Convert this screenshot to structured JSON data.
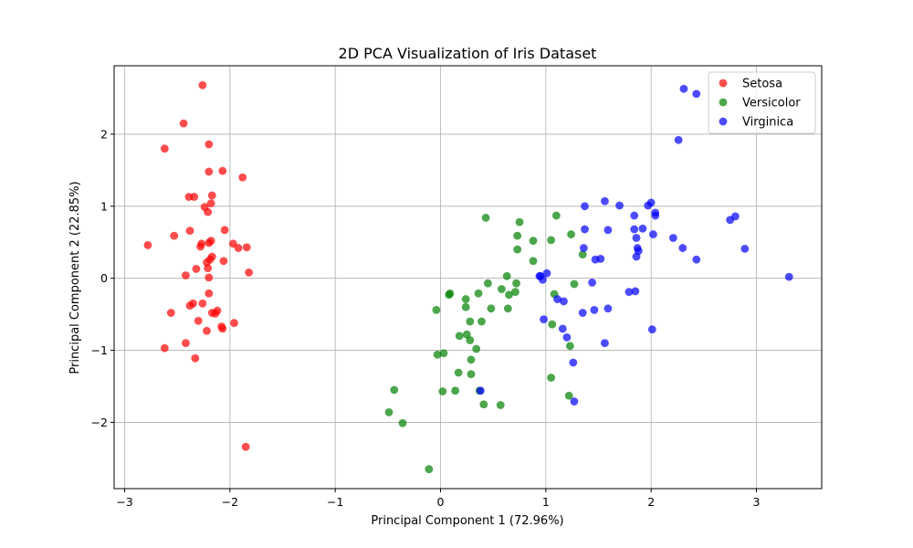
{
  "chart_data": {
    "type": "scatter",
    "title": "2D PCA Visualization of Iris Dataset",
    "xlabel": "Principal Component 1 (72.96%)",
    "ylabel": "Principal Component 2 (22.85%)",
    "xlim": [
      -3.1,
      3.62
    ],
    "ylim": [
      -2.92,
      2.95
    ],
    "xticks": [
      -3,
      -2,
      -1,
      0,
      1,
      2,
      3
    ],
    "yticks": [
      -2,
      -1,
      0,
      1,
      2
    ],
    "xtick_labels": [
      "−3",
      "−2",
      "−1",
      "0",
      "1",
      "2",
      "3"
    ],
    "ytick_labels": [
      "−2",
      "−1",
      "0",
      "1",
      "2"
    ],
    "grid": true,
    "legend_position": "top-right",
    "point_alpha": 0.7,
    "series": [
      {
        "name": "Setosa",
        "color": "#ff0000",
        "points": [
          [
            -2.26,
            2.68
          ],
          [
            -2.44,
            2.15
          ],
          [
            -2.62,
            1.8
          ],
          [
            -2.2,
            1.86
          ],
          [
            -2.2,
            1.48
          ],
          [
            -2.07,
            1.49
          ],
          [
            -1.88,
            1.4
          ],
          [
            -2.39,
            1.13
          ],
          [
            -2.34,
            1.13
          ],
          [
            -2.17,
            1.15
          ],
          [
            -2.18,
            1.04
          ],
          [
            -2.24,
            0.99
          ],
          [
            -2.21,
            0.92
          ],
          [
            -2.38,
            0.66
          ],
          [
            -2.05,
            0.67
          ],
          [
            -2.53,
            0.59
          ],
          [
            -2.78,
            0.46
          ],
          [
            -2.18,
            0.52
          ],
          [
            -2.2,
            0.49
          ],
          [
            -2.27,
            0.48
          ],
          [
            -2.28,
            0.44
          ],
          [
            -1.97,
            0.48
          ],
          [
            -1.92,
            0.42
          ],
          [
            -1.84,
            0.43
          ],
          [
            -2.17,
            0.3
          ],
          [
            -2.19,
            0.26
          ],
          [
            -2.22,
            0.22
          ],
          [
            -2.06,
            0.24
          ],
          [
            -2.32,
            0.13
          ],
          [
            -2.21,
            0.14
          ],
          [
            -1.82,
            0.08
          ],
          [
            -2.42,
            0.04
          ],
          [
            -2.2,
            0.01
          ],
          [
            -2.2,
            -0.21
          ],
          [
            -2.35,
            -0.35
          ],
          [
            -2.26,
            -0.35
          ],
          [
            -2.38,
            -0.38
          ],
          [
            -2.12,
            -0.45
          ],
          [
            -2.17,
            -0.48
          ],
          [
            -2.14,
            -0.49
          ],
          [
            -2.56,
            -0.48
          ],
          [
            -1.96,
            -0.62
          ],
          [
            -2.3,
            -0.59
          ],
          [
            -2.08,
            -0.67
          ],
          [
            -2.07,
            -0.7
          ],
          [
            -2.22,
            -0.73
          ],
          [
            -2.42,
            -0.9
          ],
          [
            -2.62,
            -0.97
          ],
          [
            -2.33,
            -1.11
          ],
          [
            -1.85,
            -2.34
          ]
        ]
      },
      {
        "name": "Versicolor",
        "color": "#008000",
        "points": [
          [
            0.43,
            0.84
          ],
          [
            0.75,
            0.78
          ],
          [
            1.1,
            0.87
          ],
          [
            0.73,
            0.59
          ],
          [
            0.88,
            0.52
          ],
          [
            1.05,
            0.53
          ],
          [
            1.24,
            0.61
          ],
          [
            0.73,
            0.4
          ],
          [
            1.35,
            0.33
          ],
          [
            0.88,
            0.24
          ],
          [
            0.63,
            0.03
          ],
          [
            0.45,
            -0.07
          ],
          [
            0.72,
            -0.07
          ],
          [
            1.27,
            -0.08
          ],
          [
            0.58,
            -0.15
          ],
          [
            0.71,
            -0.19
          ],
          [
            0.65,
            -0.23
          ],
          [
            0.09,
            -0.21
          ],
          [
            0.08,
            -0.23
          ],
          [
            1.08,
            -0.22
          ],
          [
            0.36,
            -0.21
          ],
          [
            0.24,
            -0.29
          ],
          [
            0.24,
            -0.4
          ],
          [
            0.48,
            -0.42
          ],
          [
            0.64,
            -0.42
          ],
          [
            -0.04,
            -0.44
          ],
          [
            0.28,
            -0.6
          ],
          [
            0.39,
            -0.6
          ],
          [
            1.06,
            -0.64
          ],
          [
            0.18,
            -0.8
          ],
          [
            0.25,
            -0.78
          ],
          [
            0.28,
            -0.86
          ],
          [
            1.23,
            -0.94
          ],
          [
            0.34,
            -0.98
          ],
          [
            0.03,
            -1.04
          ],
          [
            -0.03,
            -1.06
          ],
          [
            0.29,
            -1.13
          ],
          [
            0.17,
            -1.31
          ],
          [
            0.29,
            -1.33
          ],
          [
            1.05,
            -1.38
          ],
          [
            -0.44,
            -1.55
          ],
          [
            0.14,
            -1.56
          ],
          [
            0.02,
            -1.57
          ],
          [
            1.22,
            -1.63
          ],
          [
            0.57,
            -1.76
          ],
          [
            0.41,
            -1.75
          ],
          [
            -0.49,
            -1.86
          ],
          [
            -0.36,
            -2.01
          ],
          [
            -0.11,
            -2.65
          ],
          [
            0.37,
            -1.56
          ]
        ]
      },
      {
        "name": "Virginica",
        "color": "#0000ff",
        "points": [
          [
            2.31,
            2.63
          ],
          [
            2.43,
            2.56
          ],
          [
            2.26,
            1.92
          ],
          [
            1.97,
            1.01
          ],
          [
            1.56,
            1.07
          ],
          [
            1.7,
            1.01
          ],
          [
            1.37,
            1.0
          ],
          [
            2.0,
            1.05
          ],
          [
            2.04,
            0.91
          ],
          [
            2.04,
            0.87
          ],
          [
            1.84,
            0.87
          ],
          [
            2.8,
            0.86
          ],
          [
            2.75,
            0.81
          ],
          [
            1.37,
            0.68
          ],
          [
            1.84,
            0.68
          ],
          [
            1.92,
            0.69
          ],
          [
            1.59,
            0.67
          ],
          [
            2.02,
            0.61
          ],
          [
            2.21,
            0.56
          ],
          [
            1.86,
            0.56
          ],
          [
            1.36,
            0.42
          ],
          [
            1.87,
            0.42
          ],
          [
            2.3,
            0.42
          ],
          [
            2.89,
            0.41
          ],
          [
            1.88,
            0.38
          ],
          [
            1.86,
            0.3
          ],
          [
            1.47,
            0.26
          ],
          [
            1.52,
            0.27
          ],
          [
            2.43,
            0.26
          ],
          [
            1.01,
            0.07
          ],
          [
            0.94,
            0.03
          ],
          [
            0.95,
            0.03
          ],
          [
            0.97,
            -0.02
          ],
          [
            3.31,
            0.02
          ],
          [
            1.44,
            -0.06
          ],
          [
            1.79,
            -0.19
          ],
          [
            1.85,
            -0.18
          ],
          [
            1.11,
            -0.29
          ],
          [
            1.17,
            -0.32
          ],
          [
            1.35,
            -0.48
          ],
          [
            1.46,
            -0.44
          ],
          [
            1.59,
            -0.42
          ],
          [
            0.98,
            -0.57
          ],
          [
            1.16,
            -0.7
          ],
          [
            2.01,
            -0.71
          ],
          [
            1.2,
            -0.82
          ],
          [
            1.56,
            -0.9
          ],
          [
            1.26,
            -1.17
          ],
          [
            0.38,
            -1.56
          ],
          [
            1.27,
            -1.71
          ]
        ]
      }
    ]
  }
}
